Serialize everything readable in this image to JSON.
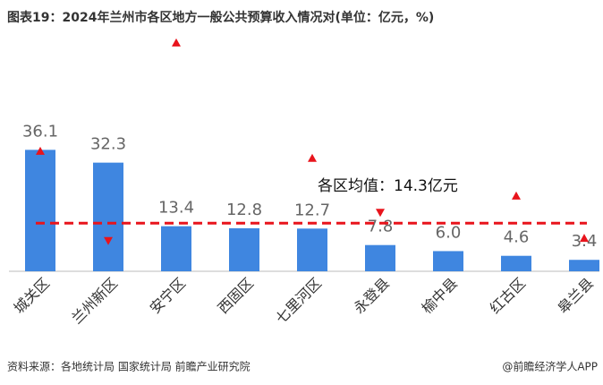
{
  "chart_data": {
    "type": "bar",
    "title": "图表19：2024年兰州市各区地方一般公共预算收入情况对(单位：亿元，%)",
    "categories": [
      "城关区",
      "兰州新区",
      "安宁区",
      "西固区",
      "七里河区",
      "永登县",
      "榆中县",
      "红古区",
      "皋兰县"
    ],
    "values": [
      36.1,
      32.3,
      13.4,
      12.8,
      12.7,
      7.8,
      6.0,
      4.6,
      3.4
    ],
    "value_labels": [
      "36.1",
      "32.3",
      "13.4",
      "12.8",
      "12.7",
      "7.8",
      "6.0",
      "4.6",
      "3.4"
    ],
    "color": "#3f86e0",
    "ylim": [
      0,
      70
    ],
    "average": 14.3,
    "average_color": "#e8141c",
    "annotation": "各区均值：14.3亿元",
    "series": [
      {
        "color": "#e8141c",
        "axis": "y2",
        "values": [
          5.1,
          1.3,
          9.7,
          null,
          4.8,
          2.5,
          null,
          3.2,
          1.4
        ],
        "markers": [
          "up",
          "down",
          "up",
          null,
          "up",
          "down",
          null,
          "up",
          "up"
        ]
      }
    ],
    "y2lim": [
      0,
      10
    ],
    "source": "资料来源：各地统计局 国家统计局 前瞻产业研究院",
    "credit": "@前瞻经济学人APP"
  }
}
